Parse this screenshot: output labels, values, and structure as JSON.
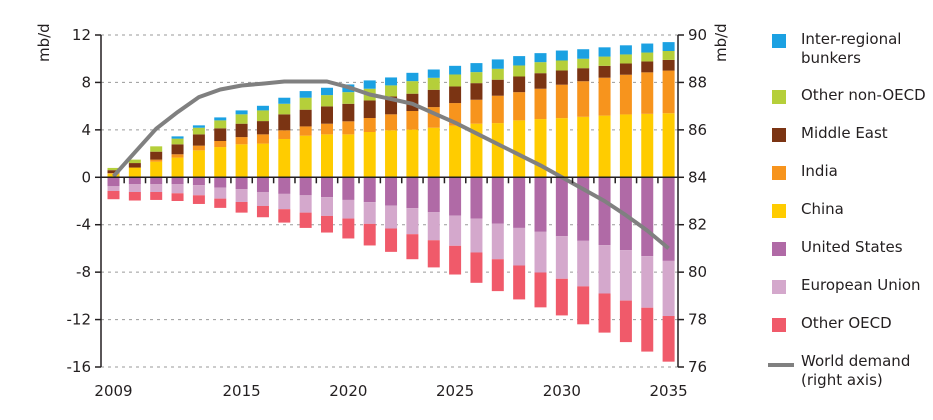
{
  "chart_data": {
    "type": "bar",
    "subtype": "stacked-bar-with-line",
    "title": "",
    "categories": [
      2009,
      2010,
      2011,
      2012,
      2013,
      2014,
      2015,
      2016,
      2017,
      2018,
      2019,
      2020,
      2021,
      2022,
      2023,
      2024,
      2025,
      2026,
      2027,
      2028,
      2029,
      2030,
      2031,
      2032,
      2033,
      2034,
      2035
    ],
    "x_tick_labels": [
      "2009",
      "2015",
      "2020",
      "2025",
      "2030",
      "2035"
    ],
    "ylabel_left": "mb/d",
    "ylabel_right": "mb/d",
    "ylim_left": [
      -16,
      12
    ],
    "y_ticks_left": [
      "12",
      "8",
      "4",
      "0",
      "-4",
      "-8",
      "-12",
      "-16"
    ],
    "y_tick_values_left": [
      12,
      8,
      4,
      0,
      -4,
      -8,
      -12,
      -16
    ],
    "ylim_right": [
      76,
      90
    ],
    "y_ticks_right": [
      "90",
      "88",
      "86",
      "84",
      "82",
      "80",
      "78",
      "76"
    ],
    "y_tick_values_right": [
      90,
      88,
      86,
      84,
      82,
      80,
      78,
      76
    ],
    "grid": "horizontal dotted",
    "legend_position": "right",
    "series": [
      {
        "name": "China",
        "color": "#ffcc00",
        "axis": "left",
        "values": [
          0.3,
          0.82,
          1.32,
          1.66,
          2.27,
          2.55,
          2.78,
          2.84,
          3.23,
          3.51,
          3.62,
          3.62,
          3.82,
          3.96,
          4.02,
          4.18,
          4.35,
          4.52,
          4.57,
          4.8,
          4.91,
          4.99,
          5.1,
          5.2,
          5.3,
          5.35,
          5.4
        ]
      },
      {
        "name": "India",
        "color": "#f7941d",
        "axis": "left",
        "values": [
          0.05,
          0.0,
          0.17,
          0.28,
          0.4,
          0.51,
          0.61,
          0.78,
          0.73,
          0.78,
          0.9,
          1.1,
          1.18,
          1.35,
          1.57,
          1.74,
          1.91,
          2.02,
          2.31,
          2.38,
          2.56,
          2.82,
          3.0,
          3.2,
          3.35,
          3.5,
          3.6
        ]
      },
      {
        "name": "Middle East",
        "color": "#7b3413",
        "axis": "left",
        "values": [
          0.25,
          0.38,
          0.67,
          0.84,
          0.95,
          1.07,
          1.13,
          1.12,
          1.35,
          1.41,
          1.46,
          1.48,
          1.48,
          1.51,
          1.46,
          1.46,
          1.4,
          1.4,
          1.35,
          1.32,
          1.31,
          1.2,
          1.1,
          1.0,
          0.95,
          0.92,
          0.9
        ]
      },
      {
        "name": "Other non-OECD",
        "color": "#b5cf3a",
        "axis": "left",
        "values": [
          0.19,
          0.29,
          0.45,
          0.48,
          0.56,
          0.67,
          0.79,
          0.9,
          0.89,
          1.01,
          0.95,
          0.98,
          0.99,
          0.93,
          1.06,
          1.01,
          1.01,
          0.93,
          0.92,
          0.93,
          0.93,
          0.84,
          0.8,
          0.78,
          0.76,
          0.75,
          0.75
        ]
      },
      {
        "name": "Inter-regional bunkers",
        "color": "#1ba1e2",
        "axis": "left",
        "values": [
          0.0,
          0.0,
          0.0,
          0.19,
          0.2,
          0.25,
          0.33,
          0.39,
          0.51,
          0.56,
          0.62,
          0.65,
          0.7,
          0.67,
          0.7,
          0.7,
          0.73,
          0.76,
          0.79,
          0.79,
          0.76,
          0.84,
          0.8,
          0.78,
          0.77,
          0.76,
          0.75
        ]
      },
      {
        "name": "United States",
        "color": "#b06aa6",
        "axis": "left",
        "values": [
          -0.76,
          -0.59,
          -0.59,
          -0.59,
          -0.67,
          -0.87,
          -1.01,
          -1.24,
          -1.4,
          -1.52,
          -1.68,
          -1.91,
          -2.1,
          -2.39,
          -2.61,
          -2.95,
          -3.23,
          -3.48,
          -3.9,
          -4.27,
          -4.6,
          -4.97,
          -5.36,
          -5.73,
          -6.15,
          -6.65,
          -7.05
        ]
      },
      {
        "name": "European Union",
        "color": "#d4a8cc",
        "axis": "left",
        "values": [
          -0.39,
          -0.65,
          -0.65,
          -0.76,
          -0.85,
          -0.93,
          -1.07,
          -1.18,
          -1.29,
          -1.46,
          -1.58,
          -1.57,
          -1.83,
          -1.93,
          -2.19,
          -2.36,
          -2.55,
          -2.86,
          -3.01,
          -3.17,
          -3.43,
          -3.59,
          -3.84,
          -4.07,
          -4.25,
          -4.35,
          -4.65
        ]
      },
      {
        "name": "Other OECD",
        "color": "#f05a6a",
        "axis": "left",
        "values": [
          -0.7,
          -0.72,
          -0.67,
          -0.65,
          -0.73,
          -0.78,
          -0.9,
          -0.95,
          -1.13,
          -1.29,
          -1.4,
          -1.68,
          -1.82,
          -1.97,
          -2.11,
          -2.29,
          -2.42,
          -2.56,
          -2.69,
          -2.86,
          -2.94,
          -3.09,
          -3.2,
          -3.3,
          -3.5,
          -3.7,
          -3.85
        ]
      }
    ],
    "line_series": {
      "name": "World demand (right axis)",
      "color": "#808080",
      "axis": "right",
      "values": [
        84.04,
        85.05,
        86.05,
        86.75,
        87.38,
        87.7,
        87.87,
        87.95,
        88.04,
        88.04,
        88.04,
        87.8,
        87.49,
        87.3,
        87.1,
        86.7,
        86.3,
        85.85,
        85.4,
        84.95,
        84.5,
        84.0,
        83.5,
        83.0,
        82.4,
        81.75,
        81.0
      ]
    }
  },
  "legend": {
    "items": [
      {
        "label": "Inter-regional\nbunkers",
        "color": "#1ba1e2",
        "kind": "swatch"
      },
      {
        "label": "Other non-OECD",
        "color": "#b5cf3a",
        "kind": "swatch"
      },
      {
        "label": "Middle East",
        "color": "#7b3413",
        "kind": "swatch"
      },
      {
        "label": "India",
        "color": "#f7941d",
        "kind": "swatch"
      },
      {
        "label": "China",
        "color": "#ffcc00",
        "kind": "swatch"
      },
      {
        "label": "United States",
        "color": "#b06aa6",
        "kind": "swatch"
      },
      {
        "label": "European Union",
        "color": "#d4a8cc",
        "kind": "swatch"
      },
      {
        "label": "Other OECD",
        "color": "#f05a6a",
        "kind": "swatch"
      },
      {
        "label": "World demand\n(right axis)",
        "color": "#808080",
        "kind": "line"
      }
    ]
  }
}
